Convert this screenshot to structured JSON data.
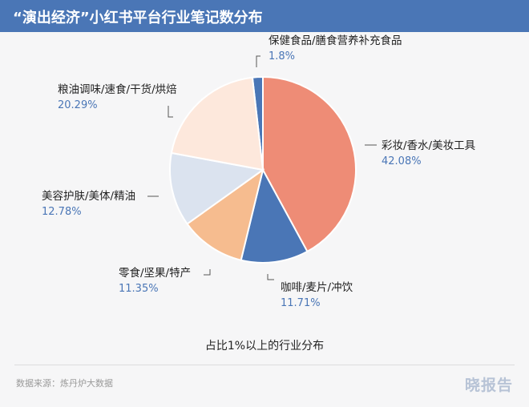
{
  "header": {
    "title": "“演出经济”小红书平台行业笔记数分布"
  },
  "chart_data": {
    "type": "pie",
    "title": "“演出经济”小红书平台行业笔记数分布",
    "subtitle": "占比1%以上的行业分布",
    "slices": [
      {
        "label": "保健食品/膳食营养补充食品",
        "value": 1.8,
        "display": "1.8%",
        "color": "#4a76b6"
      },
      {
        "label": "彩妆/香水/美妆工具",
        "value": 42.08,
        "display": "42.08%",
        "color": "#ee8c76"
      },
      {
        "label": "咖啡/麦片/冲饮",
        "value": 11.71,
        "display": "11.71%",
        "color": "#4a76b6"
      },
      {
        "label": "零食/坚果/特产",
        "value": 11.35,
        "display": "11.35%",
        "color": "#f6bc8f"
      },
      {
        "label": "美容护肤/美体/精油",
        "value": 12.78,
        "display": "12.78%",
        "color": "#dbe3ef"
      },
      {
        "label": "粮油调味/速食/干货/烘焙",
        "value": 20.29,
        "display": "20.29%",
        "color": "#fde8dc"
      }
    ]
  },
  "footer": {
    "subtitle": "占比1%以上的行业分布",
    "source": "数据来源：炼丹炉大数据",
    "brand": "晓报告"
  }
}
